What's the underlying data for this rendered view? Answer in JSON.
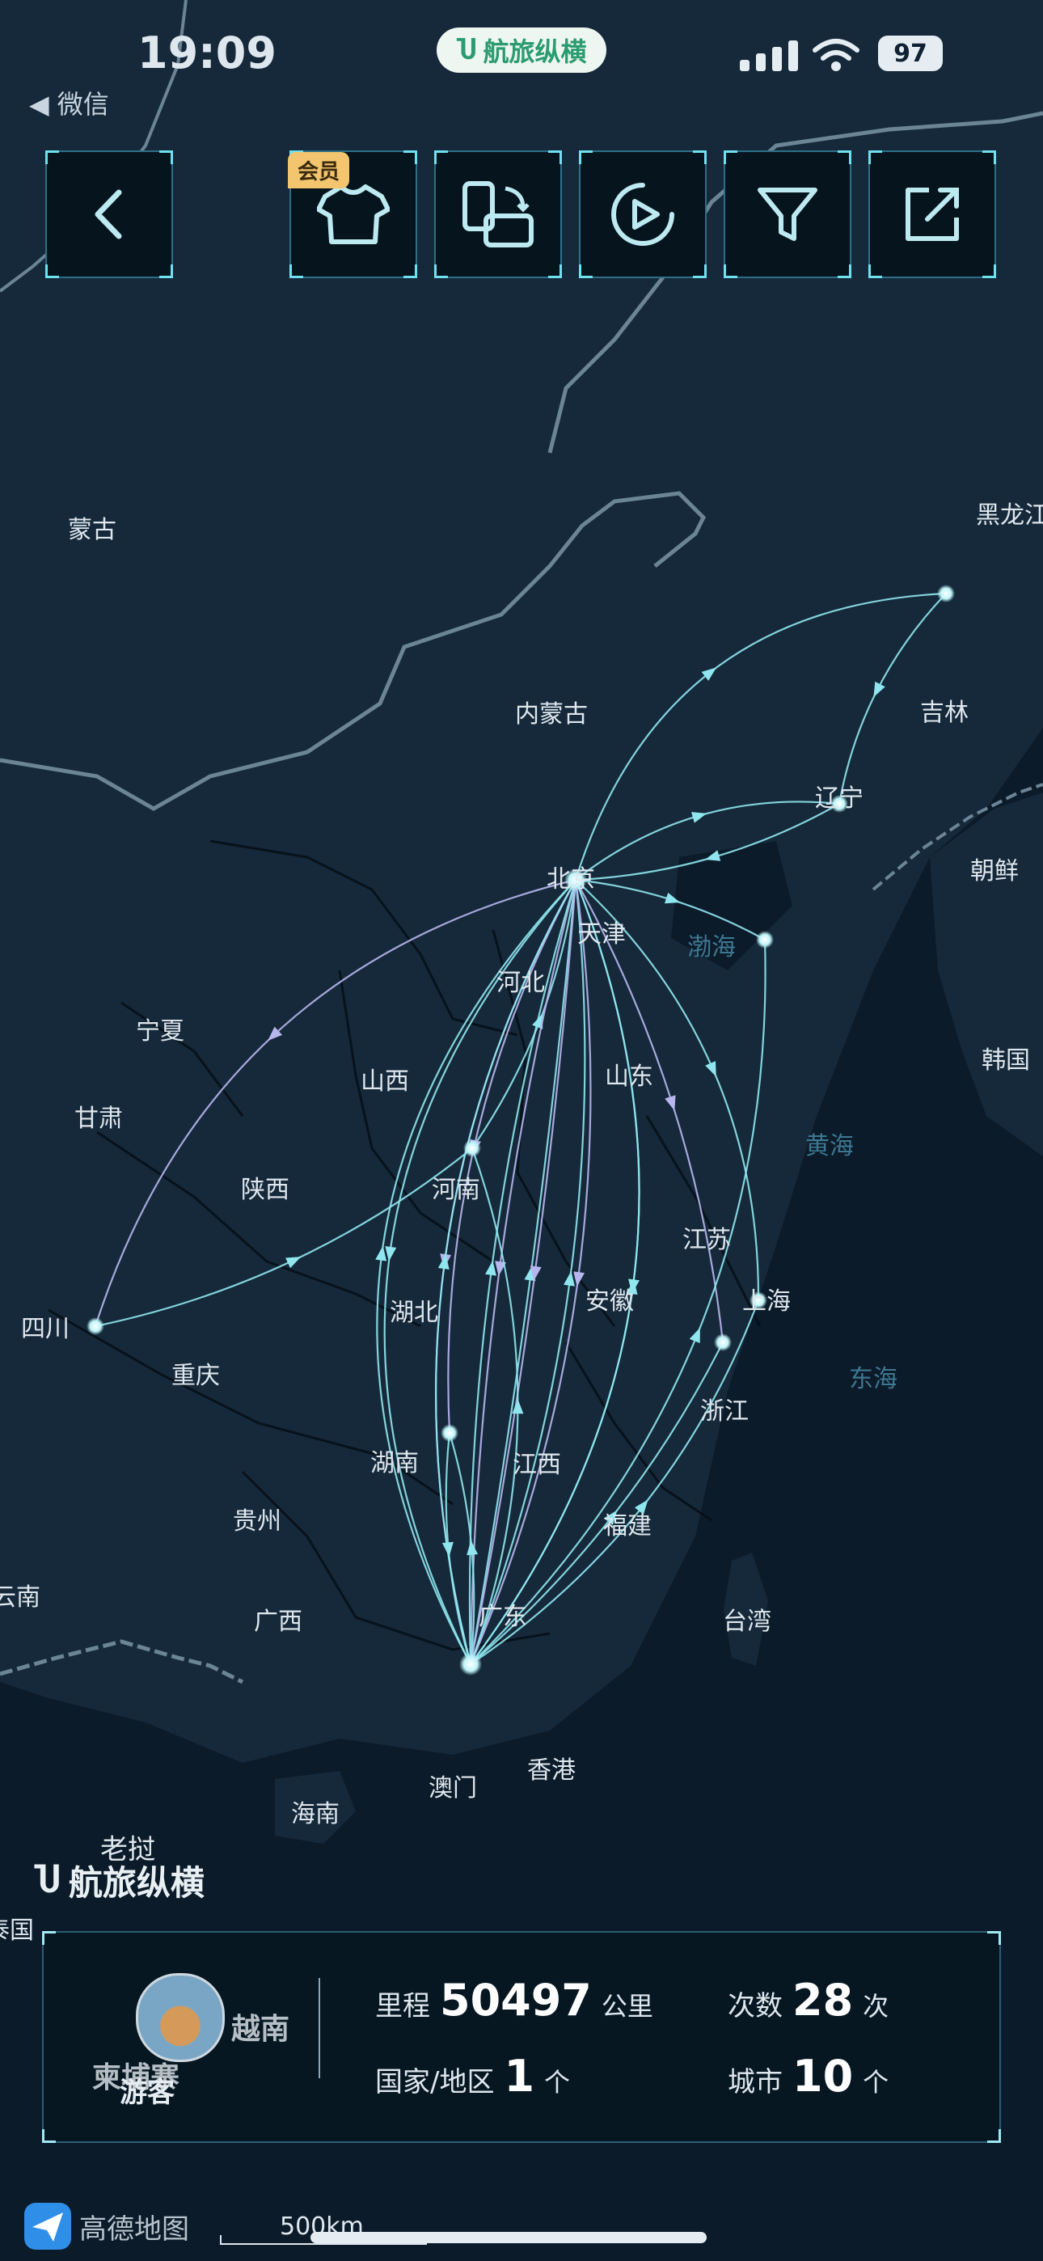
{
  "status_bar": {
    "time": "19:09",
    "back_app": "◀ 微信",
    "app_pill": "航旅纵横",
    "battery": "97"
  },
  "toolbar": {
    "vip_badge": "会员",
    "buttons": [
      "back",
      "theme",
      "rotate",
      "play",
      "filter",
      "share"
    ]
  },
  "map_labels": {
    "mongolia": "蒙古",
    "heilongjiang": "黑龙江",
    "jilin": "吉林",
    "liaoning": "辽宁",
    "north_korea": "朝鲜",
    "south_korea": "韩国",
    "inner_mongolia": "内蒙古",
    "beijing": "北京",
    "tianjin": "天津",
    "hebei": "河北",
    "ningxia": "宁夏",
    "shanxi": "山西",
    "shandong": "山东",
    "gansu": "甘肃",
    "shaanxi": "陕西",
    "henan": "河南",
    "jiangsu": "江苏",
    "sichuan": "四川",
    "hubei": "湖北",
    "anhui": "安徽",
    "shanghai": "上海",
    "chongqing": "重庆",
    "zhejiang": "浙江",
    "hunan": "湖南",
    "jiangxi": "江西",
    "guizhou": "贵州",
    "fujian": "福建",
    "yunnan_partial": "云南",
    "guangxi": "广西",
    "guangdong": "广东",
    "taiwan": "台湾",
    "hongkong": "香港",
    "macau": "澳门",
    "hainan": "海南",
    "laos": "老挝",
    "vietnam": "越南",
    "cambodia": "柬埔寨",
    "thailand_partial": "泰国"
  },
  "sea_labels": {
    "bohai": "渤海",
    "yellow_sea": "黄海",
    "east_sea": "东海"
  },
  "brand": "航旅纵横",
  "summary": {
    "nickname": "游客",
    "mileage_label": "里程",
    "mileage_value": "50497",
    "mileage_unit": "公里",
    "flights_label": "次数",
    "flights_value": "28",
    "flights_unit": "次",
    "countries_label": "国家/地区",
    "countries_value": "1",
    "countries_unit": "个",
    "cities_label": "城市",
    "cities_value": "10",
    "cities_unit": "个"
  },
  "map_footer": {
    "provider": "高德地图",
    "scale": "500km"
  },
  "colors": {
    "route": "#8fe6ee",
    "route_alt": "#b8b6ee",
    "panel_border": "#2c5d74",
    "land": "#15293a",
    "sea": "#0c1b29"
  }
}
